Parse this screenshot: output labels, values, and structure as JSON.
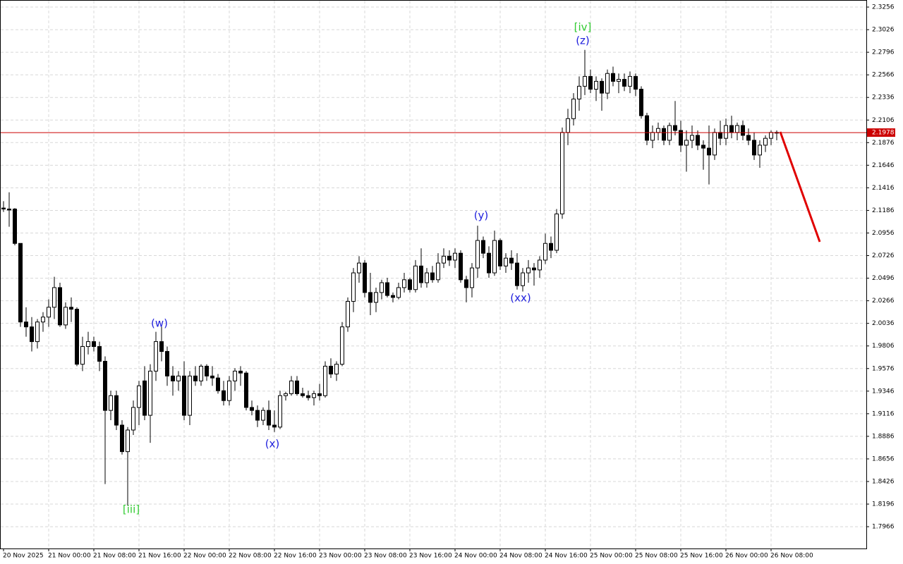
{
  "chart_data": {
    "type": "candlestick",
    "categories": [
      "20 Nov 2025",
      null,
      null,
      null,
      null,
      null,
      null,
      null,
      "21 Nov 00:00",
      null,
      null,
      null,
      null,
      null,
      null,
      null,
      "21 Nov 08:00",
      null,
      null,
      null,
      null,
      null,
      null,
      null,
      "21 Nov 16:00",
      null,
      null,
      null,
      null,
      null,
      null,
      null,
      "22 Nov 00:00",
      null,
      null,
      null,
      null,
      null,
      null,
      null,
      "22 Nov 08:00",
      null,
      null,
      null,
      null,
      null,
      null,
      null,
      "22 Nov 16:00",
      null,
      null,
      null,
      null,
      null,
      null,
      null,
      "23 Nov 00:00",
      null,
      null,
      null,
      null,
      null,
      null,
      null,
      "23 Nov 08:00",
      null,
      null,
      null,
      null,
      null,
      null,
      null,
      "23 Nov 16:00",
      null,
      null,
      null,
      null,
      null,
      null,
      null,
      "24 Nov 00:00",
      null,
      null,
      null,
      null,
      null,
      null,
      null,
      "24 Nov 08:00",
      null,
      null,
      null,
      null,
      null,
      null,
      null,
      "24 Nov 16:00",
      null,
      null,
      null,
      null,
      null,
      null,
      null,
      "25 Nov 00:00",
      null,
      null,
      null,
      null,
      null,
      null,
      null,
      "25 Nov 08:00",
      null,
      null,
      null,
      null,
      null,
      null,
      null,
      "25 Nov 16:00",
      null,
      null,
      null,
      null,
      null,
      null,
      null,
      "26 Nov 00:00",
      null,
      null,
      null,
      null,
      null,
      null,
      null,
      "26 Nov 08:00",
      null
    ],
    "open": [
      2.121,
      2.12,
      2.12,
      2.085,
      2.005,
      2.0,
      1.985,
      2.005,
      2.01,
      2.02,
      2.04,
      2.002,
      2.02,
      2.018,
      1.962,
      1.98,
      1.985,
      1.98,
      1.965,
      1.915,
      1.93,
      1.9,
      1.873,
      1.895,
      1.918,
      1.945,
      1.91,
      1.955,
      1.985,
      1.975,
      1.95,
      1.945,
      1.95,
      1.91,
      1.95,
      1.945,
      1.96,
      1.95,
      1.948,
      1.935,
      1.925,
      1.945,
      1.955,
      1.953,
      1.918,
      1.915,
      1.905,
      1.915,
      1.9,
      1.898,
      1.93,
      1.932,
      1.945,
      1.932,
      1.93,
      1.928,
      1.932,
      1.93,
      1.96,
      1.952,
      1.962,
      2.0,
      2.026,
      2.055,
      2.065,
      2.035,
      2.025,
      2.035,
      2.045,
      2.032,
      2.03,
      2.04,
      2.048,
      2.038,
      2.062,
      2.045,
      2.055,
      2.048,
      2.065,
      2.072,
      2.068,
      2.075,
      2.048,
      2.04,
      2.06,
      2.088,
      2.075,
      2.055,
      2.088,
      2.062,
      2.07,
      2.065,
      2.042,
      2.055,
      2.06,
      2.058,
      2.068,
      2.085,
      2.078,
      2.115,
      2.198,
      2.212,
      2.232,
      2.245,
      2.255,
      2.242,
      2.25,
      2.238,
      2.258,
      2.25,
      2.252,
      2.245,
      2.255,
      2.242,
      2.215,
      2.19,
      2.198,
      2.202,
      2.19,
      2.205,
      2.2,
      2.185,
      2.19,
      2.195,
      2.185,
      2.182,
      2.175,
      2.198,
      2.192,
      2.205,
      2.198,
      2.205,
      2.195,
      2.19,
      2.175,
      2.185,
      2.192,
      2.198
    ],
    "high": [
      2.128,
      2.137,
      2.121,
      2.085,
      2.02,
      2.01,
      2.008,
      2.015,
      2.028,
      2.051,
      2.045,
      2.025,
      2.03,
      2.02,
      1.99,
      1.995,
      1.99,
      1.985,
      1.97,
      1.935,
      1.935,
      1.905,
      1.898,
      1.925,
      1.945,
      1.96,
      1.962,
      1.995,
      2.0,
      1.98,
      1.96,
      1.955,
      1.965,
      1.955,
      1.96,
      1.962,
      1.962,
      1.96,
      1.952,
      1.945,
      1.95,
      1.958,
      1.96,
      1.955,
      1.925,
      1.92,
      1.918,
      1.925,
      1.915,
      1.935,
      1.934,
      1.95,
      1.95,
      1.938,
      1.935,
      1.935,
      1.942,
      1.965,
      1.968,
      1.965,
      2.005,
      2.03,
      2.06,
      2.072,
      2.068,
      2.055,
      2.04,
      2.048,
      2.05,
      2.035,
      2.045,
      2.055,
      2.05,
      2.068,
      2.08,
      2.06,
      2.062,
      2.075,
      2.08,
      2.078,
      2.08,
      2.078,
      2.052,
      2.065,
      2.103,
      2.092,
      2.082,
      2.098,
      2.09,
      2.075,
      2.078,
      2.075,
      2.06,
      2.068,
      2.065,
      2.072,
      2.095,
      2.092,
      2.12,
      2.203,
      2.222,
      2.238,
      2.255,
      2.282,
      2.262,
      2.255,
      2.253,
      2.262,
      2.265,
      2.258,
      2.258,
      2.26,
      2.258,
      2.245,
      2.218,
      2.205,
      2.208,
      2.205,
      2.208,
      2.23,
      2.21,
      2.2,
      2.205,
      2.2,
      2.19,
      2.205,
      2.202,
      2.21,
      2.212,
      2.215,
      2.208,
      2.21,
      2.202,
      2.198,
      2.19,
      2.195,
      2.2,
      2.2
    ],
    "low": [
      2.117,
      2.102,
      2.083,
      2.0,
      1.99,
      1.975,
      1.978,
      1.995,
      2.0,
      2.008,
      2.0,
      1.998,
      2.005,
      1.96,
      1.955,
      1.972,
      1.975,
      1.955,
      1.84,
      1.905,
      1.895,
      1.87,
      1.818,
      1.89,
      1.9,
      1.905,
      1.882,
      1.945,
      1.965,
      1.94,
      1.93,
      1.935,
      1.905,
      1.9,
      1.94,
      1.94,
      1.945,
      1.94,
      1.932,
      1.92,
      1.92,
      1.935,
      1.94,
      1.915,
      1.91,
      1.898,
      1.9,
      1.895,
      1.893,
      1.896,
      1.925,
      1.93,
      1.93,
      1.928,
      1.925,
      1.92,
      1.925,
      1.928,
      1.948,
      1.945,
      1.96,
      1.995,
      2.015,
      2.045,
      2.03,
      2.012,
      2.015,
      2.028,
      2.03,
      2.025,
      2.028,
      2.035,
      2.035,
      2.035,
      2.04,
      2.04,
      2.045,
      2.045,
      2.06,
      2.062,
      2.06,
      2.045,
      2.025,
      2.03,
      2.05,
      2.07,
      2.05,
      2.052,
      2.058,
      2.055,
      2.058,
      2.038,
      2.036,
      2.045,
      2.042,
      2.05,
      2.064,
      2.07,
      2.075,
      2.11,
      2.185,
      2.205,
      2.22,
      2.236,
      2.238,
      2.23,
      2.22,
      2.232,
      2.245,
      2.238,
      2.24,
      2.238,
      2.235,
      2.212,
      2.185,
      2.182,
      2.19,
      2.185,
      2.185,
      2.195,
      2.178,
      2.158,
      2.182,
      2.18,
      2.16,
      2.145,
      2.17,
      2.185,
      2.185,
      2.192,
      2.19,
      2.19,
      2.185,
      2.17,
      2.162,
      2.178,
      2.185,
      2.19
    ],
    "close": [
      2.12,
      2.119,
      2.085,
      2.005,
      2.0,
      1.985,
      2.005,
      2.01,
      2.02,
      2.04,
      2.002,
      2.02,
      2.018,
      1.962,
      1.98,
      1.985,
      1.98,
      1.965,
      1.915,
      1.93,
      1.9,
      1.873,
      1.895,
      1.918,
      1.94,
      1.91,
      1.955,
      1.985,
      1.975,
      1.95,
      1.945,
      1.95,
      1.91,
      1.95,
      1.945,
      1.96,
      1.95,
      1.948,
      1.935,
      1.925,
      1.945,
      1.955,
      1.953,
      1.918,
      1.915,
      1.905,
      1.915,
      1.9,
      1.898,
      1.93,
      1.932,
      1.945,
      1.932,
      1.93,
      1.928,
      1.932,
      1.93,
      1.96,
      1.952,
      1.962,
      2.0,
      2.026,
      2.055,
      2.065,
      2.035,
      2.025,
      2.035,
      2.045,
      2.032,
      2.03,
      2.04,
      2.048,
      2.038,
      2.062,
      2.045,
      2.055,
      2.048,
      2.065,
      2.072,
      2.068,
      2.075,
      2.048,
      2.04,
      2.06,
      2.088,
      2.075,
      2.055,
      2.088,
      2.062,
      2.07,
      2.065,
      2.042,
      2.055,
      2.06,
      2.058,
      2.068,
      2.085,
      2.078,
      2.115,
      2.198,
      2.212,
      2.232,
      2.245,
      2.255,
      2.242,
      2.25,
      2.238,
      2.258,
      2.25,
      2.252,
      2.245,
      2.255,
      2.242,
      2.215,
      2.19,
      2.198,
      2.202,
      2.19,
      2.205,
      2.2,
      2.185,
      2.19,
      2.195,
      2.185,
      2.182,
      2.175,
      2.198,
      2.192,
      2.205,
      2.198,
      2.205,
      2.195,
      2.19,
      2.175,
      2.185,
      2.192,
      2.198,
      2.1978
    ],
    "ylim": [
      1.7744,
      2.3328
    ],
    "yticks": [
      2.3256,
      2.3026,
      2.2796,
      2.2566,
      2.2336,
      2.2106,
      2.1876,
      2.1646,
      2.1416,
      2.1186,
      2.0956,
      2.0726,
      2.0496,
      2.0266,
      2.0036,
      1.9806,
      1.9576,
      1.9346,
      1.9116,
      1.8886,
      1.8656,
      1.8426,
      1.8196,
      1.7966
    ],
    "current_price": 2.1978,
    "current_price_color": "#cc0000",
    "grid": true,
    "up_color": "#ffffff",
    "down_color": "#000000",
    "annotations": [
      {
        "text": "[iii]",
        "color": "#33cc33"
      },
      {
        "text": "(w)",
        "color": "#2020dd"
      },
      {
        "text": "(x)",
        "color": "#2020dd"
      },
      {
        "text": "(y)",
        "color": "#2020dd"
      },
      {
        "text": "(xx)",
        "color": "#2020dd"
      },
      {
        "text": "(z)",
        "color": "#2020dd"
      },
      {
        "text": "[iv]",
        "color": "#33cc33"
      }
    ]
  }
}
